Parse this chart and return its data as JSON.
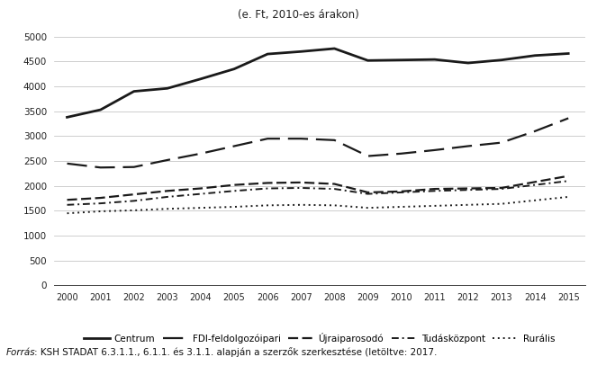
{
  "years": [
    2000,
    2001,
    2002,
    2003,
    2004,
    2005,
    2006,
    2007,
    2008,
    2009,
    2010,
    2011,
    2012,
    2013,
    2014,
    2015
  ],
  "centrum": [
    3380,
    3530,
    3900,
    3960,
    4150,
    4350,
    4650,
    4700,
    4760,
    4520,
    4530,
    4540,
    4470,
    4530,
    4620,
    4660
  ],
  "fdi": [
    2450,
    2370,
    2380,
    2520,
    2650,
    2800,
    2950,
    2950,
    2920,
    2600,
    2650,
    2720,
    2800,
    2870,
    3100,
    3360
  ],
  "ujrai": [
    1720,
    1760,
    1830,
    1900,
    1950,
    2020,
    2060,
    2070,
    2040,
    1870,
    1890,
    1940,
    1950,
    1960,
    2080,
    2200
  ],
  "tudas": [
    1620,
    1650,
    1700,
    1780,
    1840,
    1900,
    1950,
    1960,
    1940,
    1840,
    1870,
    1900,
    1920,
    1940,
    2020,
    2100
  ],
  "ruralis": [
    1450,
    1490,
    1510,
    1540,
    1560,
    1580,
    1610,
    1620,
    1610,
    1560,
    1580,
    1600,
    1620,
    1640,
    1710,
    1780
  ],
  "title_line2": "(e. Ft, 2010-es árakon)",
  "ylim": [
    0,
    5000
  ],
  "yticks": [
    0,
    500,
    1000,
    1500,
    2000,
    2500,
    3000,
    3500,
    4000,
    4500,
    5000
  ],
  "legend_labels": [
    "Centrum",
    "FDI-feldolgozóipari",
    "Újraiparosodó",
    "Tudásközpont",
    "Rurális"
  ],
  "footnote_italic": "Forrás",
  "footnote_normal": ": KSH STADAT 6.3.1.1., 6.1.1. és 3.1.1. alapján a szerzők szerkesztése (letöltve: 2017.",
  "color": "#1a1a1a",
  "bg_color": "#ffffff",
  "grid_color": "#bbbbbb"
}
